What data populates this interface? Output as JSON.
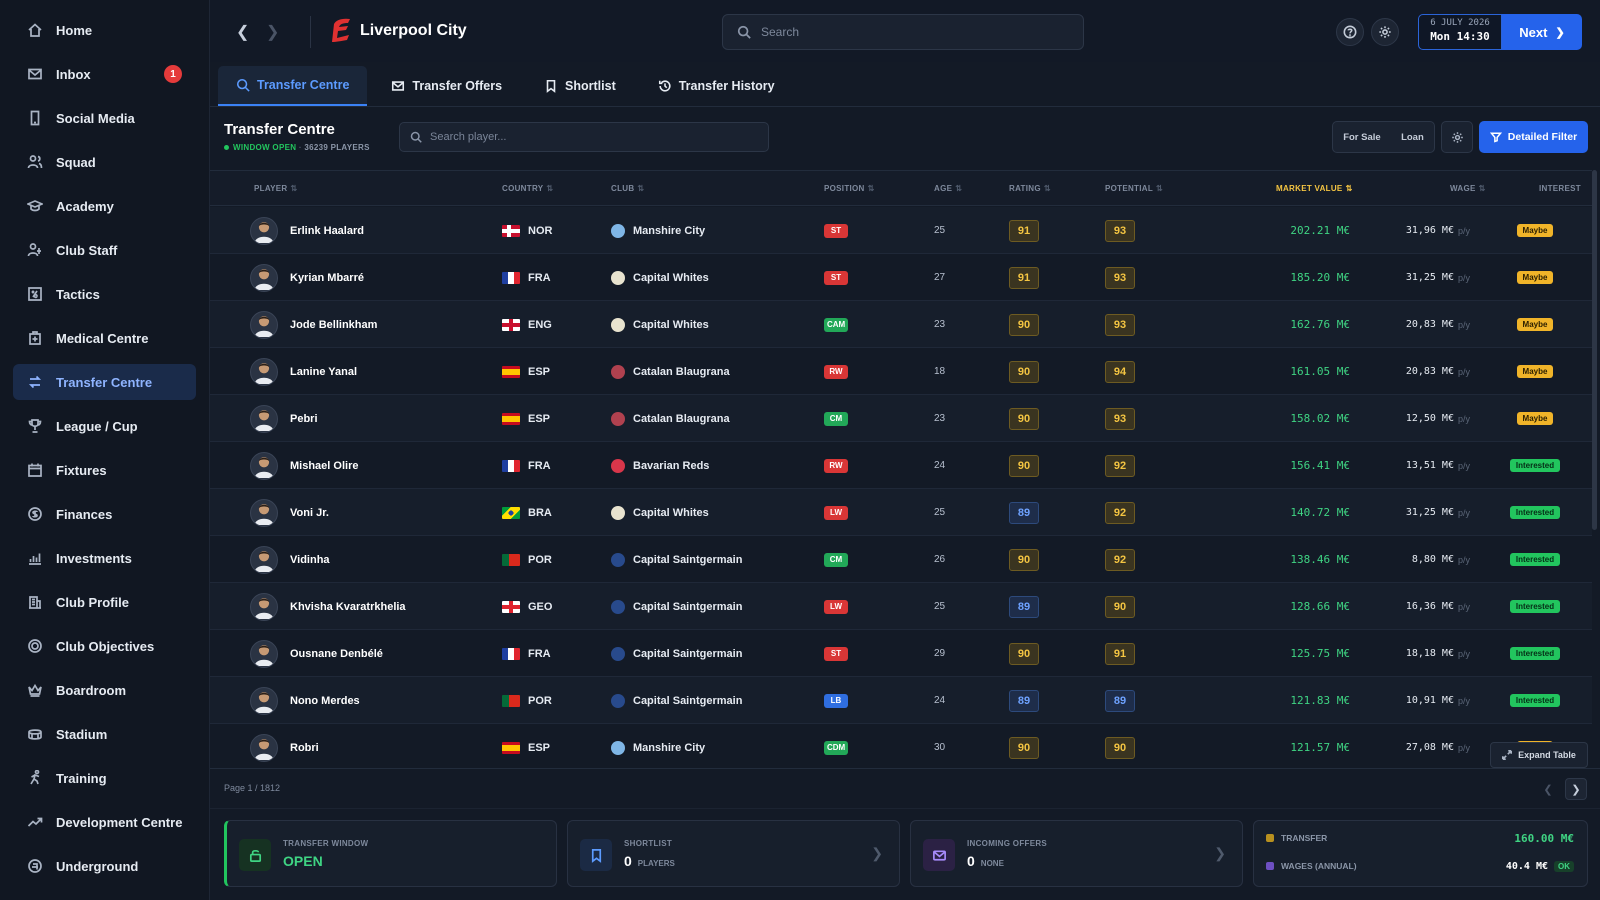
{
  "sidebar": {
    "items": [
      {
        "label": "Home",
        "icon": "home-icon"
      },
      {
        "label": "Inbox",
        "icon": "mail-icon",
        "badge": "1"
      },
      {
        "label": "Social Media",
        "icon": "phone-icon"
      },
      {
        "label": "Squad",
        "icon": "users-icon"
      },
      {
        "label": "Academy",
        "icon": "graduation-cap-icon"
      },
      {
        "label": "Club Staff",
        "icon": "staff-icon"
      },
      {
        "label": "Tactics",
        "icon": "tactics-board-icon"
      },
      {
        "label": "Medical Centre",
        "icon": "medical-icon"
      },
      {
        "label": "Transfer Centre",
        "icon": "transfer-icon",
        "active": true
      },
      {
        "label": "League / Cup",
        "icon": "trophy-icon"
      },
      {
        "label": "Fixtures",
        "icon": "calendar-icon"
      },
      {
        "label": "Finances",
        "icon": "coins-icon"
      },
      {
        "label": "Investments",
        "icon": "chart-icon"
      },
      {
        "label": "Club Profile",
        "icon": "building-icon"
      },
      {
        "label": "Club Objectives",
        "icon": "target-icon"
      },
      {
        "label": "Boardroom",
        "icon": "crown-icon"
      },
      {
        "label": "Stadium",
        "icon": "stadium-icon"
      },
      {
        "label": "Training",
        "icon": "training-icon"
      },
      {
        "label": "Development Centre",
        "icon": "trend-up-icon"
      },
      {
        "label": "Underground",
        "icon": "underground-icon"
      }
    ]
  },
  "header": {
    "club_name": "Liverpool City",
    "search_placeholder": "Search",
    "date": "6 JULY 2026",
    "time": "Mon 14:30",
    "next_label": "Next",
    "accent_color": "#2563eb"
  },
  "tabs": [
    {
      "label": "Transfer Centre",
      "icon": "search-icon",
      "active": true
    },
    {
      "label": "Transfer Offers",
      "icon": "envelope-icon"
    },
    {
      "label": "Shortlist",
      "icon": "bookmark-icon"
    },
    {
      "label": "Transfer History",
      "icon": "history-icon"
    }
  ],
  "subheader": {
    "title": "Transfer Centre",
    "window_status": "WINDOW OPEN",
    "player_count": "36239 PLAYERS",
    "search_placeholder": "Search player...",
    "for_sale_label": "For Sale",
    "loan_label": "Loan",
    "filter_label": "Detailed Filter"
  },
  "table": {
    "columns": {
      "player": "PLAYER",
      "country": "COUNTRY",
      "club": "CLUB",
      "position": "POSITION",
      "age": "AGE",
      "rating": "RATING",
      "potential": "POTENTIAL",
      "market_value": "MARKET VALUE",
      "wage": "WAGE",
      "interest": "INTEREST"
    },
    "wage_suffix": "p/y",
    "rows": [
      {
        "name": "Erlink Haalard",
        "country": "NOR",
        "club": "Manshire City",
        "position": "ST",
        "age": "25",
        "rating": "91",
        "potential": "93",
        "market_value": "202.21 M€",
        "wage": "31,96 M€",
        "interest": "Maybe"
      },
      {
        "name": "Kyrian Mbarré",
        "country": "FRA",
        "club": "Capital Whites",
        "position": "ST",
        "age": "27",
        "rating": "91",
        "potential": "93",
        "market_value": "185.20 M€",
        "wage": "31,25 M€",
        "interest": "Maybe"
      },
      {
        "name": "Jode Bellinkham",
        "country": "ENG",
        "club": "Capital Whites",
        "position": "CAM",
        "age": "23",
        "rating": "90",
        "potential": "93",
        "market_value": "162.76 M€",
        "wage": "20,83 M€",
        "interest": "Maybe"
      },
      {
        "name": "Lanine Yanal",
        "country": "ESP",
        "club": "Catalan Blaugrana",
        "position": "RW",
        "age": "18",
        "rating": "90",
        "potential": "94",
        "market_value": "161.05 M€",
        "wage": "20,83 M€",
        "interest": "Maybe"
      },
      {
        "name": "Pebri",
        "country": "ESP",
        "club": "Catalan Blaugrana",
        "position": "CM",
        "age": "23",
        "rating": "90",
        "potential": "93",
        "market_value": "158.02 M€",
        "wage": "12,50 M€",
        "interest": "Maybe"
      },
      {
        "name": "Mishael Olire",
        "country": "FRA",
        "club": "Bavarian Reds",
        "position": "RW",
        "age": "24",
        "rating": "90",
        "potential": "92",
        "market_value": "156.41 M€",
        "wage": "13,51 M€",
        "interest": "Interested"
      },
      {
        "name": "Voni Jr.",
        "country": "BRA",
        "club": "Capital Whites",
        "position": "LW",
        "age": "25",
        "rating": "89",
        "potential": "92",
        "market_value": "140.72 M€",
        "wage": "31,25 M€",
        "interest": "Interested"
      },
      {
        "name": "Vidinha",
        "country": "POR",
        "club": "Capital Saintgermain",
        "position": "CM",
        "age": "26",
        "rating": "90",
        "potential": "92",
        "market_value": "138.46 M€",
        "wage": "8,80 M€",
        "interest": "Interested"
      },
      {
        "name": "Khvisha Kvaratrkhelia",
        "country": "GEO",
        "club": "Capital Saintgermain",
        "position": "LW",
        "age": "25",
        "rating": "89",
        "potential": "90",
        "market_value": "128.66 M€",
        "wage": "16,36 M€",
        "interest": "Interested"
      },
      {
        "name": "Ousnane Denbélé",
        "country": "FRA",
        "club": "Capital Saintgermain",
        "position": "ST",
        "age": "29",
        "rating": "90",
        "potential": "91",
        "market_value": "125.75 M€",
        "wage": "18,18 M€",
        "interest": "Interested"
      },
      {
        "name": "Nono Merdes",
        "country": "POR",
        "club": "Capital Saintgermain",
        "position": "LB",
        "age": "24",
        "rating": "89",
        "potential": "89",
        "market_value": "121.83 M€",
        "wage": "10,91 M€",
        "interest": "Interested"
      },
      {
        "name": "Robri",
        "country": "ESP",
        "club": "Manshire City",
        "position": "CDM",
        "age": "30",
        "rating": "90",
        "potential": "90",
        "market_value": "121.57 M€",
        "wage": "27,08 M€",
        "interest": "Maybe"
      }
    ]
  },
  "expand_label": "Expand Table",
  "pagination": {
    "text": "Page 1 / 1812"
  },
  "cards": {
    "transfer_window": {
      "label": "TRANSFER WINDOW",
      "value": "OPEN"
    },
    "shortlist": {
      "label": "SHORTLIST",
      "value": "0",
      "sub": "PLAYERS"
    },
    "incoming_offers": {
      "label": "INCOMING OFFERS",
      "value": "0",
      "sub": "NONE"
    },
    "finance": {
      "transfer_label": "TRANSFER",
      "transfer_value": "160.00 M€",
      "wages_label": "WAGES (ANNUAL)",
      "wages_value": "40.4 M€",
      "wages_status": "OK"
    }
  },
  "colors": {
    "position": {
      "ST": "#d93636",
      "RW": "#d93636",
      "LW": "#d93636",
      "CAM": "#22a858",
      "CM": "#22a858",
      "CDM": "#22a858",
      "LB": "#2f6ee0"
    },
    "market_value": "#3fd483",
    "rating_gold": "#f4c542",
    "rating_blue": "#6ea2ff"
  }
}
